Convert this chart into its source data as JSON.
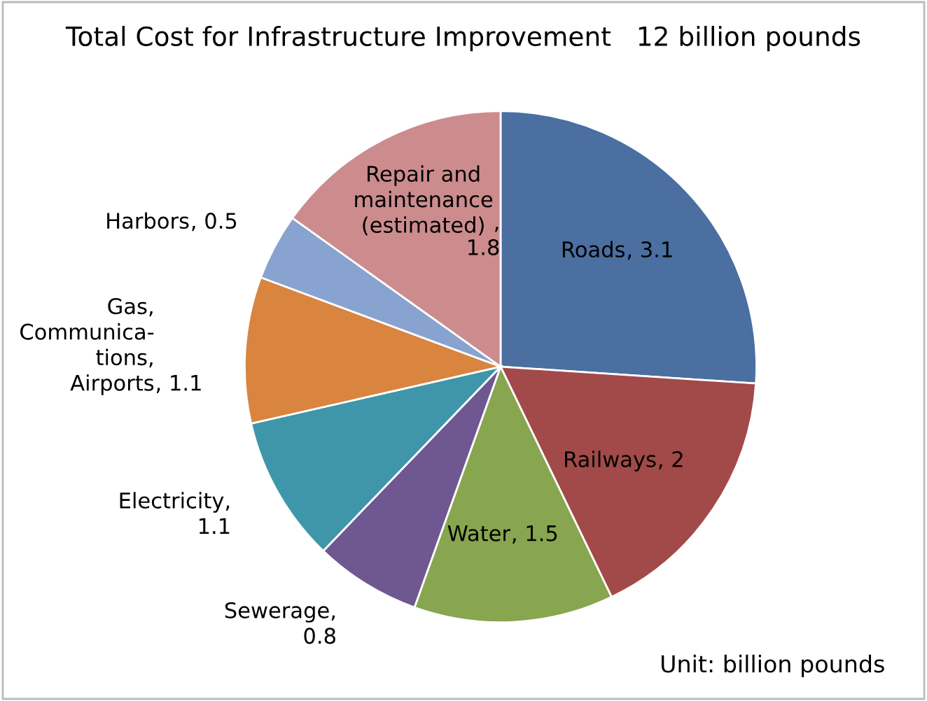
{
  "chart_data": {
    "type": "pie",
    "title": "Total Cost for Infrastructure Improvement   12 billion pounds",
    "categories": [
      "Roads",
      "Railways",
      "Water",
      "Sewerage",
      "Electricity",
      "Gas,\nCommunica-\ntions,\nAirports",
      "Harbors",
      "Repair and\nmaintenance\n(estimated)"
    ],
    "values": [
      3.1,
      2,
      1.5,
      0.8,
      1.1,
      1.1,
      0.5,
      1.8
    ],
    "value_labels": [
      ", 3.1",
      ", 2",
      ", 1.5",
      ",\n0.8",
      ",\n1.1",
      ", 1.1",
      ", 0.5",
      ",\n1.8"
    ],
    "colors": [
      "#4a6fa0",
      "#a24a49",
      "#88a550",
      "#6f5791",
      "#3f96aa",
      "#d9843f",
      "#88a3d0",
      "#cc8c8e"
    ],
    "annotations": [
      "Unit: billion pounds"
    ],
    "legend": false
  }
}
